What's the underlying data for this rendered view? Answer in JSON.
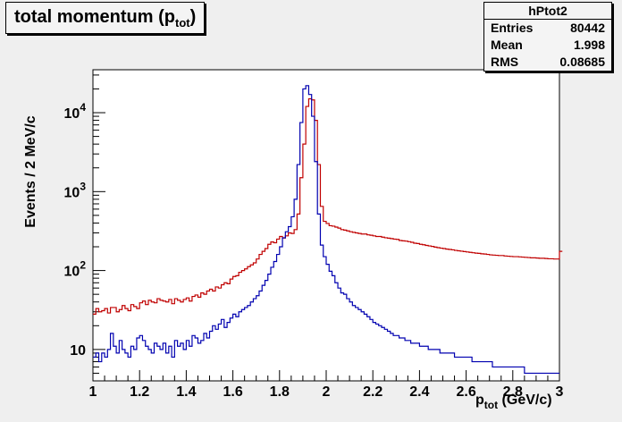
{
  "chart_data": {
    "type": "line",
    "title_main": "total momentum (p",
    "title_sub": "tot",
    "title_end": ")",
    "ylabel": "Events / 2 MeV/c",
    "xlabel_main": "p",
    "xlabel_sub": "tot",
    "xlabel_unit": " (GeV/c)",
    "x_range": [
      1.0,
      3.0
    ],
    "y_range": [
      4,
      35000
    ],
    "y_scale": "log",
    "x_ticks": [
      "1",
      "1.2",
      "1.4",
      "1.6",
      "1.8",
      "2",
      "2.2",
      "2.4",
      "2.6",
      "2.8",
      "3"
    ],
    "y_ticks": [
      {
        "value": 10,
        "base": "10",
        "exp": ""
      },
      {
        "value": 100,
        "base": "10",
        "exp": "2"
      },
      {
        "value": 1000,
        "base": "10",
        "exp": "3"
      },
      {
        "value": 10000,
        "base": "10",
        "exp": "4"
      }
    ],
    "bin_width": 0.0125,
    "series": [
      {
        "color": "#c00000",
        "y": [
          28,
          33,
          30,
          31,
          33,
          29,
          34,
          34,
          30,
          32,
          36,
          33,
          31,
          37,
          35,
          33,
          39,
          41,
          37,
          42,
          40,
          39,
          44,
          42,
          41,
          40,
          43,
          38,
          44,
          42,
          40,
          43,
          45,
          41,
          47,
          49,
          46,
          52,
          50,
          55,
          58,
          55,
          62,
          60,
          66,
          70,
          68,
          78,
          84,
          86,
          95,
          100,
          105,
          112,
          118,
          125,
          140,
          160,
          175,
          190,
          215,
          230,
          225,
          250,
          270,
          258,
          275,
          300,
          295,
          330,
          520,
          1500,
          4000,
          12000,
          15000,
          14500,
          8000,
          2200,
          650,
          420,
          395,
          370,
          365,
          355,
          345,
          330,
          325,
          318,
          310,
          305,
          300,
          295,
          290,
          290,
          283,
          280,
          275,
          270,
          270,
          265,
          260,
          257,
          254,
          250,
          248,
          240,
          238,
          236,
          232,
          228,
          222,
          220,
          215,
          212,
          208,
          205,
          202,
          198,
          195,
          192,
          190,
          187,
          185,
          183,
          180,
          178,
          176,
          174,
          172,
          170,
          168,
          166,
          165,
          163,
          162,
          160,
          158,
          157,
          156,
          155,
          155,
          153,
          152,
          151,
          150,
          150,
          149,
          148,
          147,
          146,
          145,
          145,
          144,
          143,
          143,
          142,
          141,
          141,
          140,
          140,
          175
        ]
      },
      {
        "color": "#0000b0",
        "y": [
          8,
          9,
          7,
          9,
          8,
          10,
          16,
          11,
          9,
          13,
          10,
          9,
          8,
          11,
          10,
          14,
          15,
          13,
          11,
          10,
          9,
          12,
          11,
          10,
          12,
          9,
          11,
          8,
          13,
          11,
          12,
          10,
          13,
          11,
          15,
          14,
          12,
          13,
          16,
          14,
          17,
          20,
          18,
          21,
          24,
          19,
          22,
          25,
          28,
          26,
          30,
          32,
          34,
          36,
          40,
          44,
          48,
          55,
          65,
          75,
          90,
          110,
          130,
          160,
          200,
          260,
          310,
          360,
          480,
          800,
          2200,
          7500,
          20000,
          22000,
          17000,
          9000,
          2400,
          520,
          210,
          150,
          120,
          98,
          86,
          70,
          60,
          52,
          50,
          44,
          40,
          36,
          34,
          32,
          30,
          28,
          26,
          24,
          22,
          21,
          20,
          19,
          18,
          17,
          16,
          15,
          15,
          14,
          14,
          13,
          13,
          12,
          12,
          12,
          11,
          11,
          11,
          10,
          10,
          10,
          10,
          9,
          9,
          9,
          9,
          9,
          8,
          8,
          8,
          8,
          8,
          8,
          7,
          7,
          7,
          7,
          7,
          7,
          7,
          6,
          6,
          6,
          6,
          6,
          6,
          6,
          6,
          6,
          6,
          6,
          5,
          5,
          5,
          5,
          5,
          5,
          5,
          5,
          5,
          5,
          5,
          5
        ]
      }
    ]
  },
  "stats": {
    "name": "hPtot2",
    "rows": [
      {
        "label": "Entries",
        "value": "80442"
      },
      {
        "label": "Mean",
        "value": "1.998"
      },
      {
        "label": "RMS",
        "value": "0.08685"
      }
    ]
  }
}
